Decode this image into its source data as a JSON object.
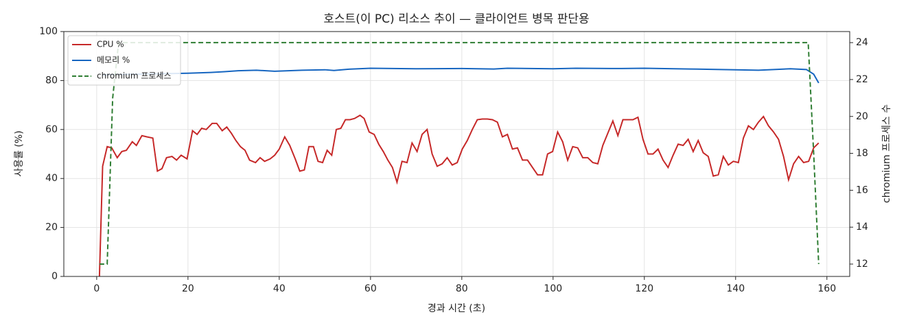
{
  "chart_data": {
    "type": "line",
    "title": "호스트(이 PC) 리소스 추이 — 클라이언트 병목 판단용",
    "x_label": "경과 시간 (초)",
    "y_label": "사용률 (%)",
    "y2_label": "chromium 프로세스 수",
    "xlim": [
      -7.2,
      165
    ],
    "xticks": [
      0,
      20,
      40,
      60,
      80,
      100,
      120,
      140,
      160
    ],
    "ylim": [
      0,
      100
    ],
    "yticks": [
      0,
      20,
      40,
      60,
      80,
      100
    ],
    "y2lim": [
      11.33,
      24.6
    ],
    "y2ticks": [
      12,
      14,
      16,
      18,
      20,
      22,
      24
    ],
    "grid": true,
    "legend": "upper left",
    "series": [
      {
        "name": "CPU %",
        "color": "#c62828",
        "linestyle": "solid",
        "x": [
          0.6,
          1.3,
          2.3,
          3.3,
          4.5,
          5.5,
          6.5,
          7.8,
          8.7,
          9.9,
          11,
          12.3,
          13.3,
          14.3,
          15.3,
          16.5,
          17.5,
          18.5,
          19.8,
          21,
          22,
          23,
          24,
          25.3,
          26.3,
          27.5,
          28.5,
          29.5,
          30.5,
          31.5,
          32.5,
          33.5,
          34.8,
          35.8,
          36.8,
          38,
          39,
          40,
          41.2,
          42.3,
          43.5,
          44.5,
          45.5,
          46.5,
          47.5,
          48.5,
          49.5,
          50.5,
          51.5,
          52.5,
          53.5,
          54.5,
          55.5,
          56.5,
          57.7,
          58.6,
          59.7,
          60.8,
          61.8,
          62.8,
          63.8,
          64.8,
          65.8,
          66.9,
          68.0,
          69.1,
          70.2,
          71.3,
          72.4,
          73.5,
          74.6,
          75.7,
          76.8,
          77.9,
          79.0,
          80.1,
          81.2,
          82.3,
          83.4,
          84.5,
          85.6,
          86.7,
          87.8,
          88.9,
          90.0,
          91.1,
          92.2,
          93.3,
          94.4,
          95.5,
          96.6,
          97.7,
          98.8,
          99.9,
          101.0,
          102.1,
          103.2,
          104.3,
          105.4,
          106.5,
          107.6,
          108.7,
          109.8,
          110.9,
          112.0,
          113.1,
          114.2,
          115.3,
          116.4,
          117.5,
          118.6,
          119.7,
          120.8,
          121.9,
          123.0,
          124.1,
          125.2,
          126.3,
          127.4,
          128.5,
          129.6,
          130.7,
          131.8,
          132.9,
          134.0,
          135.1,
          136.2,
          137.3,
          138.4,
          139.5,
          140.6,
          141.7,
          142.8,
          143.9,
          145.0,
          146.1,
          147.2,
          148.3,
          149.4,
          150.5,
          151.6,
          152.7,
          153.8,
          154.9,
          156.0,
          157.1,
          158.2
        ],
        "values": [
          0,
          45,
          53,
          52.5,
          48.5,
          51,
          51.5,
          55,
          53.5,
          57.5,
          57,
          56.5,
          43,
          44,
          48.5,
          49,
          47.5,
          49.5,
          48,
          59.5,
          58,
          60.5,
          60,
          62.5,
          62.5,
          59.5,
          61,
          58.5,
          55.5,
          53,
          51.5,
          47.5,
          46.5,
          48.5,
          47,
          48,
          49.5,
          52,
          57,
          53.5,
          48,
          43,
          43.5,
          53,
          53,
          47,
          46.5,
          51.5,
          49.5,
          60,
          60.5,
          64,
          64,
          64.5,
          65.8,
          64.5,
          59,
          58,
          54,
          51,
          47.5,
          44.5,
          38.5,
          47,
          46.5,
          54.5,
          51,
          58,
          60,
          50,
          45,
          46,
          48.5,
          45.5,
          46.5,
          52,
          55.5,
          60,
          64,
          64.3,
          64.3,
          64,
          63,
          57,
          58,
          52,
          52.5,
          47.5,
          47.5,
          44.5,
          41.5,
          41.5,
          50,
          51,
          59,
          55,
          47.5,
          53,
          52.5,
          48.5,
          48.5,
          46.5,
          46,
          53.5,
          58.5,
          63.5,
          57.5,
          64,
          64,
          64,
          65,
          56,
          50,
          50,
          52,
          47.5,
          44.5,
          49.5,
          54,
          53.5,
          56,
          51,
          55.5,
          50.5,
          49,
          41,
          41.5,
          49,
          45.5,
          47,
          46.5,
          56.5,
          61.5,
          60,
          63,
          65.3,
          61.5,
          59,
          56,
          49,
          39.5,
          46,
          49,
          46.5,
          47,
          52.5,
          54.5
        ]
      },
      {
        "name": "메모리 %",
        "color": "#1565c0",
        "linestyle": "solid",
        "x": [
          1.3,
          5,
          10,
          15,
          20,
          25,
          28,
          31,
          35,
          39,
          42,
          45,
          50,
          52,
          55,
          60,
          70,
          80,
          87,
          90,
          100,
          105,
          115,
          120,
          130,
          140,
          145,
          152,
          155.5,
          157.1,
          158.2
        ],
        "values": [
          82.3,
          82.5,
          82.6,
          82.8,
          83,
          83.3,
          83.6,
          84,
          84.2,
          83.8,
          84,
          84.2,
          84.4,
          84.1,
          84.6,
          85,
          84.8,
          84.9,
          84.7,
          85,
          84.8,
          85,
          84.9,
          85,
          84.7,
          84.4,
          84.2,
          84.8,
          84.5,
          82.6,
          79
        ]
      },
      {
        "name": "chromium 프로세스",
        "color": "#2e7d32",
        "linestyle": "dashed",
        "axis": "y2",
        "x": [
          0.6,
          2.3,
          3.5,
          4.8,
          155.9,
          157.1,
          158.2
        ],
        "values": [
          12,
          12,
          21,
          24,
          24,
          18,
          12
        ]
      }
    ]
  }
}
